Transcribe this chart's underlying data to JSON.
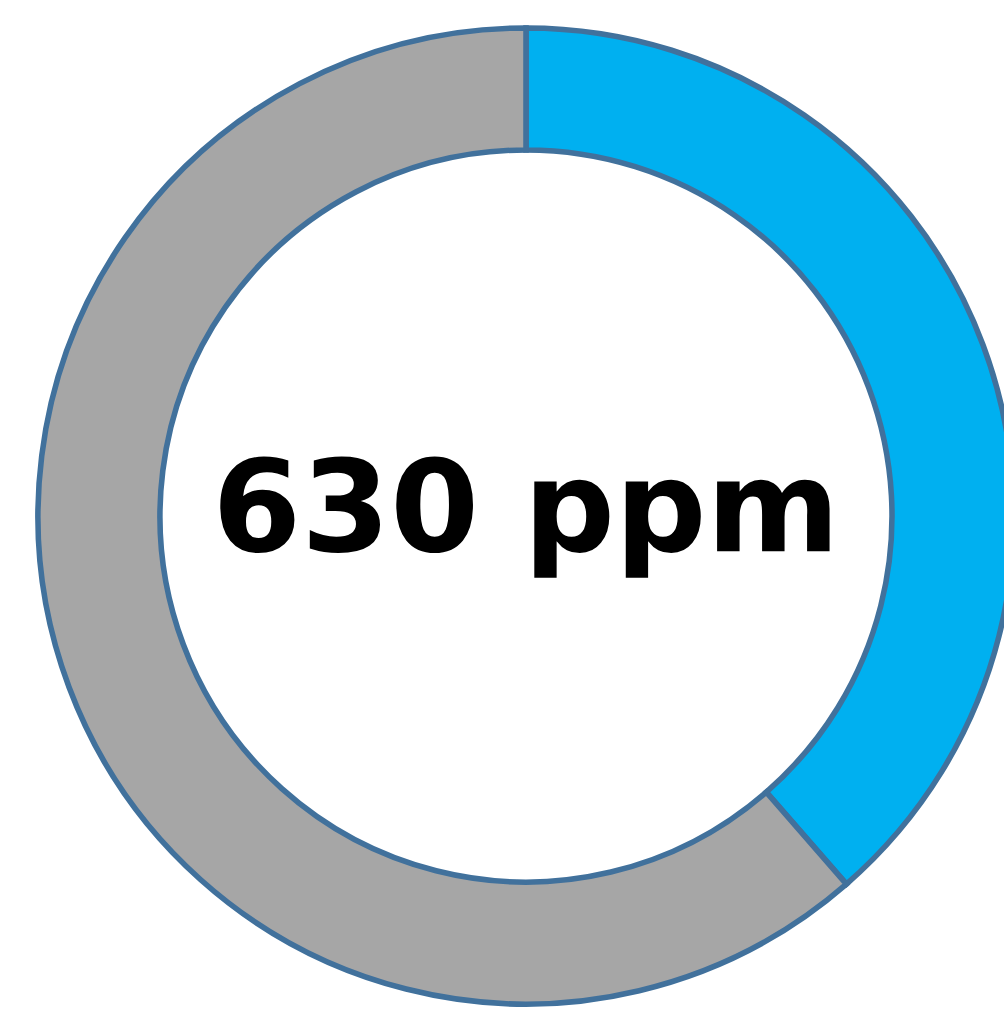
{
  "chart_data": {
    "type": "donut",
    "categories": [
      null,
      null
    ],
    "values": [
      38.6,
      61.4
    ],
    "colors": [
      "#00b0f0",
      "#a6a6a6"
    ],
    "annotations": [
      "630 ppm"
    ]
  }
}
